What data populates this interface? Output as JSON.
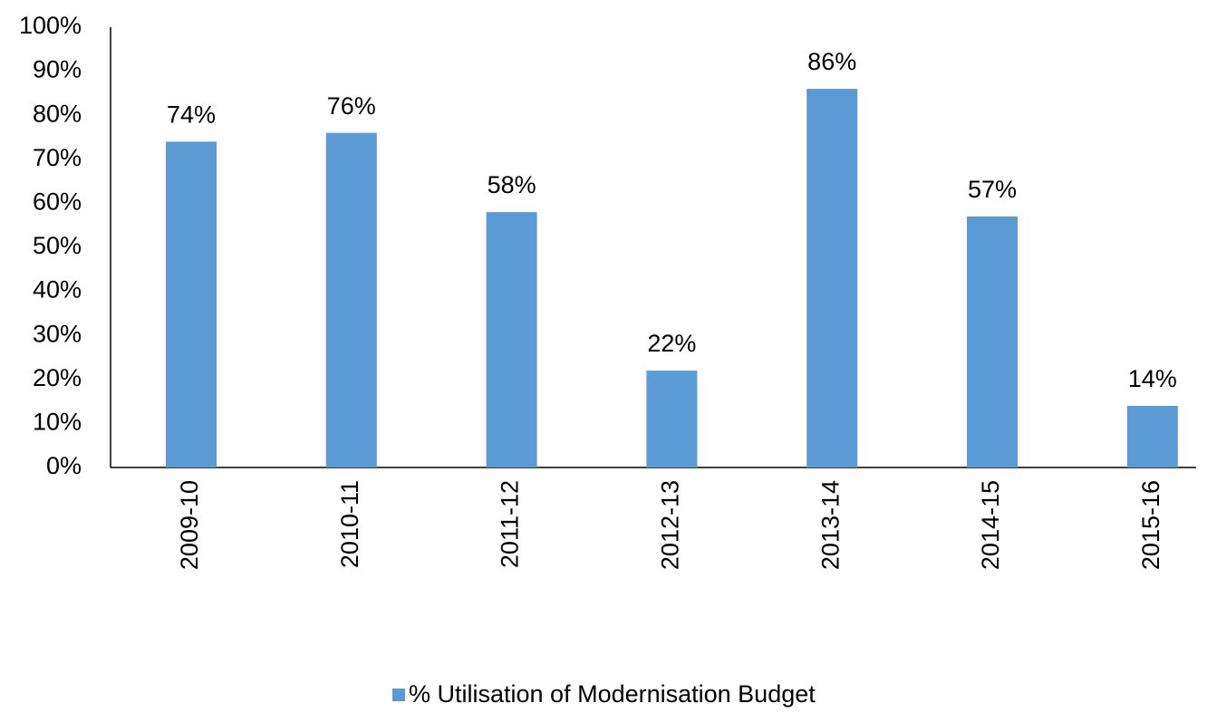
{
  "chart_data": {
    "type": "bar",
    "categories": [
      "2009-10",
      "2010-11",
      "2011-12",
      "2012-13",
      "2013-14",
      "2014-15",
      "2015-16"
    ],
    "series": [
      {
        "name": "% Utilisation of Modernisation Budget",
        "color": "#5b9bd5",
        "values": [
          74,
          76,
          58,
          22,
          86,
          57,
          14
        ],
        "value_labels": [
          "74%",
          "76%",
          "58%",
          "22%",
          "86%",
          "57%",
          "14%"
        ]
      }
    ],
    "ylim": [
      0,
      100
    ],
    "yticks": [
      {
        "value": 0,
        "label": "0%"
      },
      {
        "value": 10,
        "label": "10%"
      },
      {
        "value": 20,
        "label": "20%"
      },
      {
        "value": 30,
        "label": "30%"
      },
      {
        "value": 40,
        "label": "40%"
      },
      {
        "value": 50,
        "label": "50%"
      },
      {
        "value": 60,
        "label": "60%"
      },
      {
        "value": 70,
        "label": "70%"
      },
      {
        "value": 80,
        "label": "80%"
      },
      {
        "value": 90,
        "label": "90%"
      },
      {
        "value": 100,
        "label": "100%"
      }
    ],
    "grid": false,
    "legend": "bottom"
  }
}
